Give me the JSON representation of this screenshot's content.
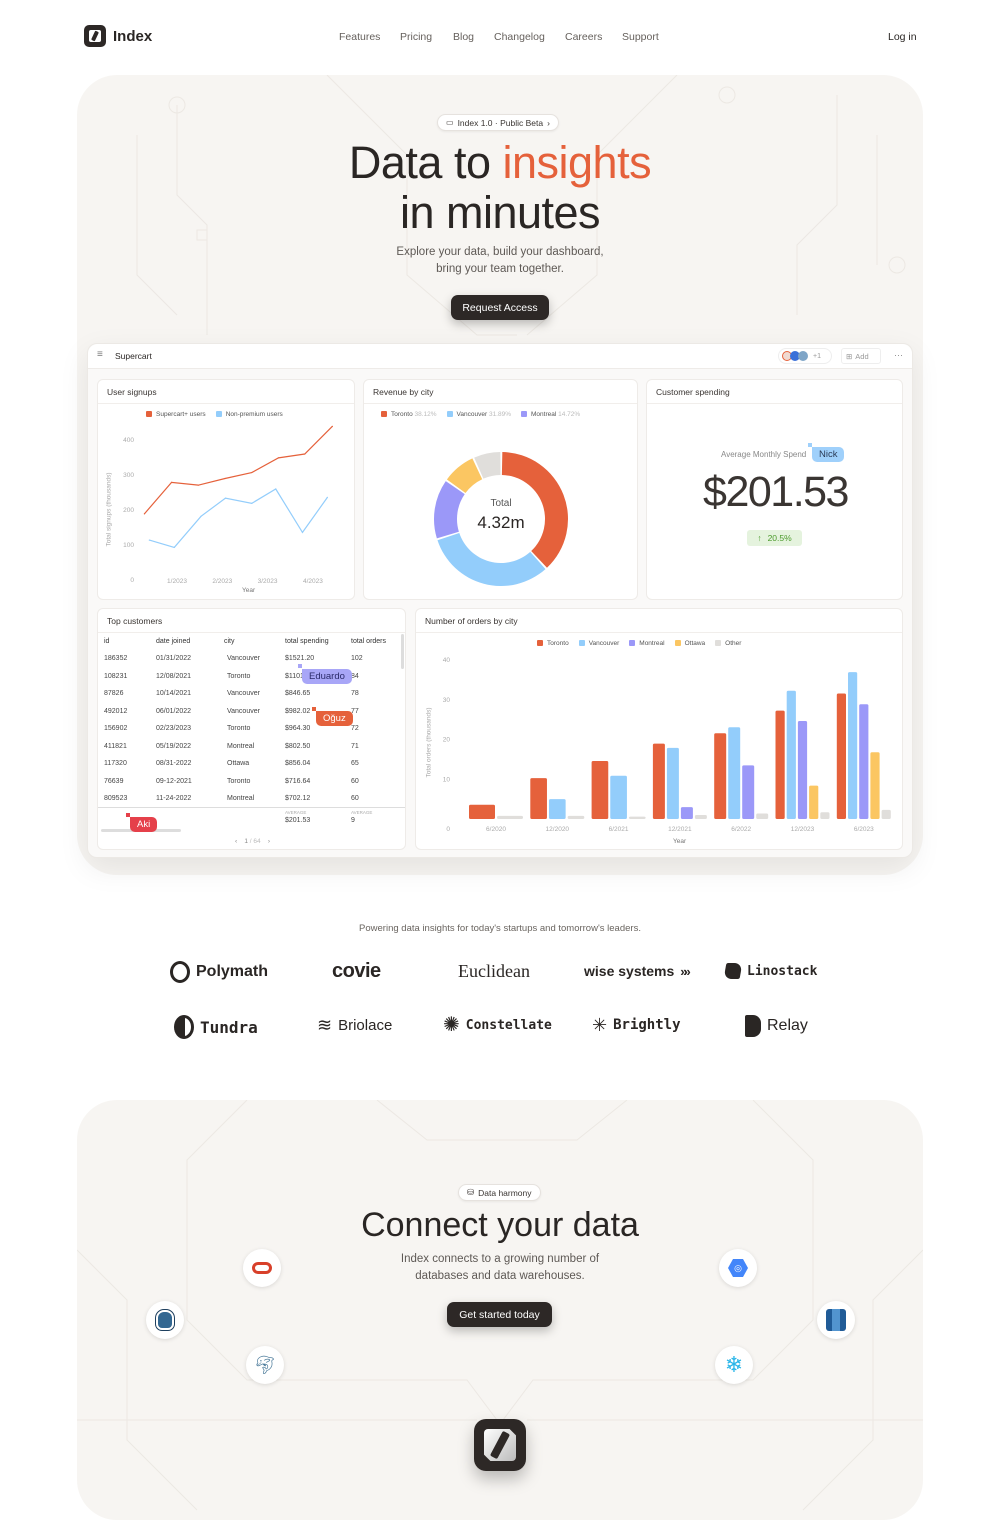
{
  "nav": {
    "brand": "Index",
    "links": [
      "Features",
      "Pricing",
      "Blog",
      "Changelog",
      "Careers",
      "Support"
    ],
    "login": "Log in"
  },
  "hero": {
    "badge": "Index 1.0 · Public Beta",
    "title_part1": "Data to ",
    "title_highlight": "insights",
    "title_line2": "in minutes",
    "subtitle_line1": "Explore your data, build your dashboard,",
    "subtitle_line2": "bring your team together.",
    "cta": "Request Access",
    "accent": "#e5613b"
  },
  "dashboard": {
    "workspace": "Supercart",
    "extra_collaborators": "+1",
    "add_label": "Add",
    "user_signups": {
      "title": "User signups"
    },
    "revenue_by_city": {
      "title": "Revenue by city"
    },
    "customer_spending": {
      "title": "Customer spending",
      "label": "Average Monthly Spend",
      "value": "$201.53",
      "change": "20.5%",
      "change_direction": "up"
    },
    "top_customers": {
      "title": "Top customers",
      "columns": [
        "id",
        "date joined",
        "city",
        "total spending",
        "total orders"
      ],
      "rows": [
        [
          "186352",
          "01/31/2022",
          "Vancouver",
          "$1521.20",
          "102"
        ],
        [
          "108231",
          "12/08/2021",
          "Toronto",
          "$1101.02",
          "84"
        ],
        [
          "87826",
          "10/14/2021",
          "Vancouver",
          "$846.65",
          "78"
        ],
        [
          "492012",
          "06/01/2022",
          "Vancouver",
          "$982.02",
          "77"
        ],
        [
          "156902",
          "02/23/2023",
          "Toronto",
          "$964.30",
          "72"
        ],
        [
          "411821",
          "05/19/2022",
          "Montreal",
          "$802.50",
          "71"
        ],
        [
          "117320",
          "08/31-2022",
          "Ottawa",
          "$856.04",
          "65"
        ],
        [
          "76639",
          "09-12-2021",
          "Toronto",
          "$716.64",
          "60"
        ],
        [
          "809523",
          "11-24-2022",
          "Montreal",
          "$702.12",
          "60"
        ]
      ],
      "footer_label": "AVERAGE",
      "avg_spending": "$201.53",
      "avg_orders": "9",
      "page": "1",
      "page_sep": "/",
      "total_pages": "64"
    },
    "orders_by_city": {
      "title": "Number of orders by city"
    },
    "cursors": [
      {
        "name": "Eduardo",
        "color": "#a8a6f7"
      },
      {
        "name": "Oğuz",
        "color": "#e5613b"
      },
      {
        "name": "Aki",
        "color": "#e5404a"
      },
      {
        "name": "Nick",
        "color": "#9fd0fb"
      }
    ]
  },
  "chart_data": [
    {
      "type": "line",
      "ylabel": "Total signups (thousands)",
      "xlabel": "Year",
      "yticks": [
        "0",
        "100",
        "200",
        "300",
        "400"
      ],
      "xticks": [
        "1/2023",
        "2/2023",
        "3/2023",
        "4/2023"
      ],
      "ylim": [
        0,
        400
      ],
      "series": [
        {
          "name": "Supercart+ users",
          "color": "#e5613b",
          "x": [
            0.28,
            0.88,
            1.47,
            2.06,
            2.65,
            3.24,
            3.82,
            4.43
          ],
          "y": [
            189,
            279,
            271,
            290,
            307,
            349,
            360,
            439
          ]
        },
        {
          "name": "Non-premium users",
          "color": "#93cdfb",
          "x": [
            0.39,
            0.94,
            1.53,
            2.07,
            2.65,
            3.18,
            3.77,
            4.32
          ],
          "y": [
            114,
            93,
            182,
            234,
            219,
            260,
            136,
            236
          ]
        }
      ]
    },
    {
      "type": "pie",
      "center_label": "Total",
      "center_value": "4.32m",
      "slices": [
        {
          "name": "Toronto",
          "pct_label": "38.12%",
          "value": 38.12,
          "color": "#e5613b"
        },
        {
          "name": "Vancouver",
          "pct_label": "31.89%",
          "value": 31.89,
          "color": "#93cdfb"
        },
        {
          "name": "Montreal",
          "pct_label": "14.72%",
          "value": 14.72,
          "color": "#9b98f8"
        },
        {
          "value": 8.4,
          "color": "#fbc662"
        },
        {
          "value": 6.87,
          "color": "#e0dedb"
        }
      ]
    },
    {
      "type": "bar",
      "ylabel": "Total orders (thousands)",
      "xlabel": "Year",
      "yticks": [
        "0",
        "10",
        "20",
        "30",
        "40"
      ],
      "ylim": [
        0,
        40
      ],
      "categories": [
        "6/2020",
        "12/2020",
        "6/2021",
        "12/2021",
        "6/2022",
        "12/2023",
        "6/2023"
      ],
      "series": [
        {
          "name": "Toronto",
          "color": "#e5613b",
          "values": [
            3.6,
            10.3,
            14.6,
            19.0,
            21.6,
            27.3,
            31.6
          ]
        },
        {
          "name": "Vancouver",
          "color": "#93cdfb",
          "values": [
            null,
            5.0,
            10.9,
            17.9,
            23.1,
            32.3,
            37.0
          ]
        },
        {
          "name": "Montreal",
          "color": "#9b98f8",
          "values": [
            null,
            null,
            null,
            3.0,
            13.5,
            24.7,
            28.9
          ]
        },
        {
          "name": "Ottawa",
          "color": "#fbc662",
          "values": [
            null,
            null,
            null,
            null,
            null,
            8.4,
            16.8
          ]
        },
        {
          "name": "Other",
          "color": "#e0dedb",
          "values": [
            0.8,
            0.8,
            0.6,
            1.0,
            1.4,
            1.7,
            2.3
          ]
        }
      ]
    }
  ],
  "logos": {
    "tagline": "Powering data insights for today's startups and tomorrow's leaders.",
    "row1": [
      "Polymath",
      "covie",
      "Euclidean",
      "wise systems",
      "Linostack"
    ],
    "row2": [
      "Tundra",
      "Briolace",
      "Constellate",
      "Brightly",
      "Relay"
    ]
  },
  "connect": {
    "badge": "Data harmony",
    "title": "Connect your data",
    "subtitle_line1": "Index connects to a growing number of",
    "subtitle_line2": "databases and data warehouses.",
    "cta": "Get started today",
    "integrations": [
      "oracle-icon",
      "postgresql-icon",
      "mysql-icon",
      "bigquery-icon",
      "redshift-icon",
      "snowflake-icon"
    ]
  }
}
